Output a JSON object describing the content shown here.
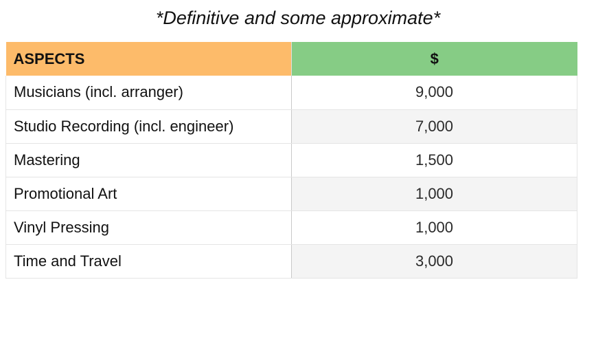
{
  "caption": "*Definitive and some approximate*",
  "table": {
    "headers": {
      "aspect": "ASPECTS",
      "cost": "$"
    },
    "rows": [
      {
        "aspect": "Musicians (incl. arranger)",
        "cost": "9,000"
      },
      {
        "aspect": "Studio Recording (incl. engineer)",
        "cost": "7,000"
      },
      {
        "aspect": "Mastering",
        "cost": "1,500"
      },
      {
        "aspect": "Promotional Art",
        "cost": "1,000"
      },
      {
        "aspect": "Vinyl Pressing",
        "cost": "1,000"
      },
      {
        "aspect": "Time and Travel",
        "cost": "3,000"
      }
    ]
  },
  "colors": {
    "aspect_header_bg": "#fdbb6a",
    "cost_header_bg": "#86cc85",
    "alt_row_bg": "#f4f4f4"
  }
}
